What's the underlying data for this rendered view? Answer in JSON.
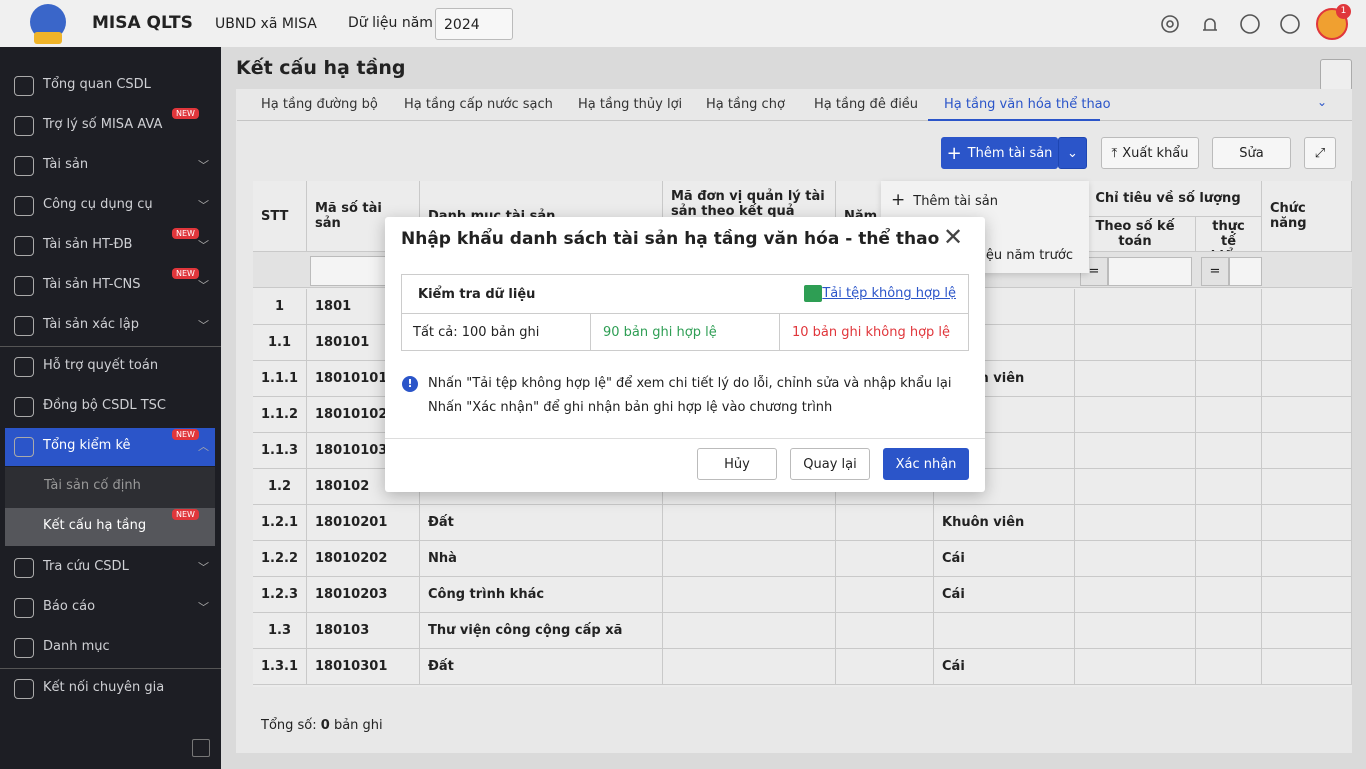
{
  "header": {
    "app_name": "MISA QLTS",
    "org": "UBND xã MISA",
    "year_label": "Dữ liệu năm",
    "year": "2024",
    "notification_count": "1"
  },
  "sidebar": {
    "items": [
      {
        "label": "Tổng quan CSDL"
      },
      {
        "label": "Trợ lý số MISA AVA",
        "badge": "NEW"
      },
      {
        "label": "Tài sản"
      },
      {
        "label": "Công cụ dụng cụ"
      },
      {
        "label": "Tài sản HT-ĐB",
        "badge": "NEW"
      },
      {
        "label": "Tài sản HT-CNS",
        "badge": "NEW"
      },
      {
        "label": "Tài sản xác lập"
      },
      {
        "label": "Hỗ trợ quyết toán"
      },
      {
        "label": "Đồng bộ CSDL TSC"
      },
      {
        "label": "Tổng kiểm kê",
        "badge": "NEW"
      },
      {
        "label": "Tài sản cố định"
      },
      {
        "label": "Kết cấu hạ tầng",
        "badge": "NEW"
      },
      {
        "label": "Tra cứu CSDL"
      },
      {
        "label": "Báo cáo"
      },
      {
        "label": "Danh mục"
      },
      {
        "label": "Kết nối chuyên gia"
      }
    ]
  },
  "page": {
    "title": "Kết cấu hạ tầng",
    "tabs": [
      "Hạ tầng đường bộ",
      "Hạ tầng cấp nước sạch",
      "Hạ tầng thủy lợi",
      "Hạ tầng chợ",
      "Hạ tầng đê điều",
      "Hạ tầng văn hóa thể thao"
    ],
    "toolbar": {
      "add": "Thêm tài sản",
      "export": "Xuất khẩu",
      "edit": "Sửa"
    },
    "add_menu": [
      "Thêm tài sản",
      "liệu năm trước"
    ],
    "footer": {
      "label": "Tổng số:",
      "count": "0",
      "unit": "bản ghi"
    }
  },
  "table": {
    "headers": {
      "stt": "STT",
      "code": "Mã số tài sản",
      "name": "Danh mục tài sản",
      "unit_code": "Mã đơn vị quản lý tài sản theo kết quả tổng kiểm",
      "year": "Năm",
      "quantity": "Chỉ tiêu về số lượng",
      "by_book": "Theo số kế toán",
      "by_check": "Theo thực tế kiểm",
      "actions": "Chức năng"
    },
    "filter_ops": [
      "=",
      "="
    ],
    "rows": [
      {
        "stt": "1",
        "code": "1801"
      },
      {
        "stt": "1.1",
        "code": "180101"
      },
      {
        "stt": "1.1.1",
        "code": "18010101",
        "unit": "Khuôn viên"
      },
      {
        "stt": "1.1.2",
        "code": "18010102"
      },
      {
        "stt": "1.1.3",
        "code": "18010103"
      },
      {
        "stt": "1.2",
        "code": "180102"
      },
      {
        "stt": "1.2.1",
        "code": "18010201",
        "name": "Đất",
        "unit": "Khuôn viên"
      },
      {
        "stt": "1.2.2",
        "code": "18010202",
        "name": "Nhà",
        "unit": "Cái"
      },
      {
        "stt": "1.2.3",
        "code": "18010203",
        "name": "Công trình khác",
        "unit": "Cái"
      },
      {
        "stt": "1.3",
        "code": "180103",
        "name": "Thư viện công cộng cấp xã"
      },
      {
        "stt": "1.3.1",
        "code": "18010301",
        "name": "Đất",
        "unit": "Cái"
      }
    ]
  },
  "modal": {
    "title": "Nhập khẩu danh sách tài sản  hạ tầng văn hóa - thể thao",
    "section": "Kiểm tra dữ liệu",
    "download_link": "Tải tệp không hợp lệ",
    "total": "Tất cả: 100 bản ghi",
    "valid": "90 bản ghi hợp lệ",
    "invalid": "10 bản ghi không hợp lệ",
    "notes": [
      "Nhấn \"Tải tệp không hợp lệ\" để xem chi tiết lý do lỗi, chỉnh sửa và nhập khẩu lại",
      "Nhấn \"Xác nhận\" để ghi nhận bản ghi hợp lệ vào chương trình"
    ],
    "buttons": {
      "cancel": "Hủy",
      "back": "Quay lại",
      "confirm": "Xác nhận"
    }
  }
}
